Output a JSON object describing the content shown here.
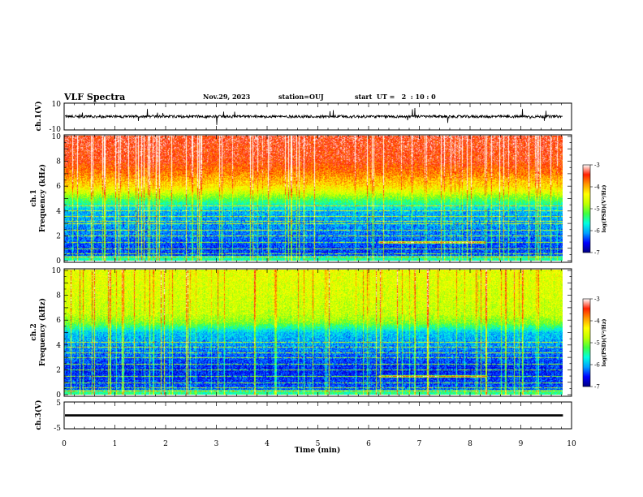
{
  "header": {
    "title": "VLF Spectra",
    "date": "Nov.29, 2023",
    "station": "station=OUJ",
    "start_ut": "start  UT =   2  : 10 : 0"
  },
  "colors": {
    "colormap": [
      "#000080",
      "#0000ff",
      "#00a0ff",
      "#00ffe0",
      "#40ff40",
      "#c0ff00",
      "#ffff00",
      "#ff9900",
      "#ff2000",
      "#ffffff"
    ],
    "trace": "#000000",
    "axis": "#000000"
  },
  "chart_data": [
    {
      "type": "line",
      "name": "waveform-ch1",
      "ylabel": "ch.1(V)",
      "ylim": [
        -10,
        10
      ],
      "yticks": [
        10,
        -10
      ],
      "x_range_min": [
        0,
        9.83
      ],
      "baseline_v": 0,
      "noise_amplitude_v": 2,
      "spike_amplitude_v": 6
    },
    {
      "type": "heatmap",
      "name": "spectrogram-ch1",
      "ylabel": "ch.1\nFrequency (kHz)",
      "ylim": [
        0,
        10
      ],
      "yticks": [
        0,
        2,
        4,
        6,
        8,
        10
      ],
      "x_range_min": [
        0,
        9.83
      ],
      "colorbar": {
        "label": "log(PSD)(V²/Hz)",
        "range": [
          -7,
          -3
        ],
        "ticks": [
          -3,
          -4,
          -5,
          -6,
          -7
        ]
      },
      "level_profile": [
        [
          0,
          -6.3
        ],
        [
          1,
          -6.4
        ],
        [
          2,
          -6.2
        ],
        [
          3,
          -6.1
        ],
        [
          4,
          -6.0
        ],
        [
          4.8,
          -5.3
        ],
        [
          5.5,
          -4.6
        ],
        [
          6,
          -4.2
        ],
        [
          7,
          -3.8
        ],
        [
          8,
          -3.5
        ],
        [
          10,
          -3.4
        ]
      ],
      "hum_lines_khz": [
        0.3,
        0.6,
        1.0,
        1.5,
        2.0,
        2.5,
        3.0,
        3.2,
        3.6,
        4.0,
        4.4
      ],
      "band_event": {
        "t_start_min": 6.2,
        "t_end_min": 8.3,
        "freq_khz": 1.5
      }
    },
    {
      "type": "heatmap",
      "name": "spectrogram-ch2",
      "ylabel": "ch.2\nFrequency (kHz)",
      "ylim": [
        0,
        10
      ],
      "yticks": [
        0,
        2,
        4,
        6,
        8,
        10
      ],
      "x_range_min": [
        0,
        9.83
      ],
      "colorbar": {
        "label": "log(PSD)(V²/Hz)",
        "range": [
          -7,
          -3
        ],
        "ticks": [
          -3,
          -4,
          -5,
          -6,
          -7
        ]
      },
      "level_profile": [
        [
          0,
          -6.2
        ],
        [
          1,
          -6.4
        ],
        [
          2,
          -6.5
        ],
        [
          3,
          -6.3
        ],
        [
          4,
          -6.1
        ],
        [
          5,
          -5.9
        ],
        [
          5.8,
          -5.0
        ],
        [
          6.5,
          -4.7
        ],
        [
          8,
          -4.6
        ],
        [
          10,
          -4.5
        ]
      ],
      "hum_lines_khz": [
        0.3,
        0.6,
        1.0,
        1.5,
        2.0,
        2.5,
        3.0,
        3.4,
        3.8,
        4.2
      ],
      "band_event": {
        "t_start_min": 6.2,
        "t_end_min": 8.3,
        "freq_khz": 1.5
      }
    },
    {
      "type": "line",
      "name": "waveform-ch3",
      "ylabel": "ch.3(V)",
      "ylim": [
        -5,
        5
      ],
      "yticks": [
        5,
        -5
      ],
      "x_range_min": [
        0,
        9.83
      ],
      "baseline_v": 0,
      "band_thickness_v": 0.8
    }
  ],
  "xaxis": {
    "label": "Time (min)",
    "range": [
      0,
      10
    ],
    "ticks": [
      0,
      1,
      2,
      3,
      4,
      5,
      6,
      7,
      8,
      9,
      10
    ]
  }
}
